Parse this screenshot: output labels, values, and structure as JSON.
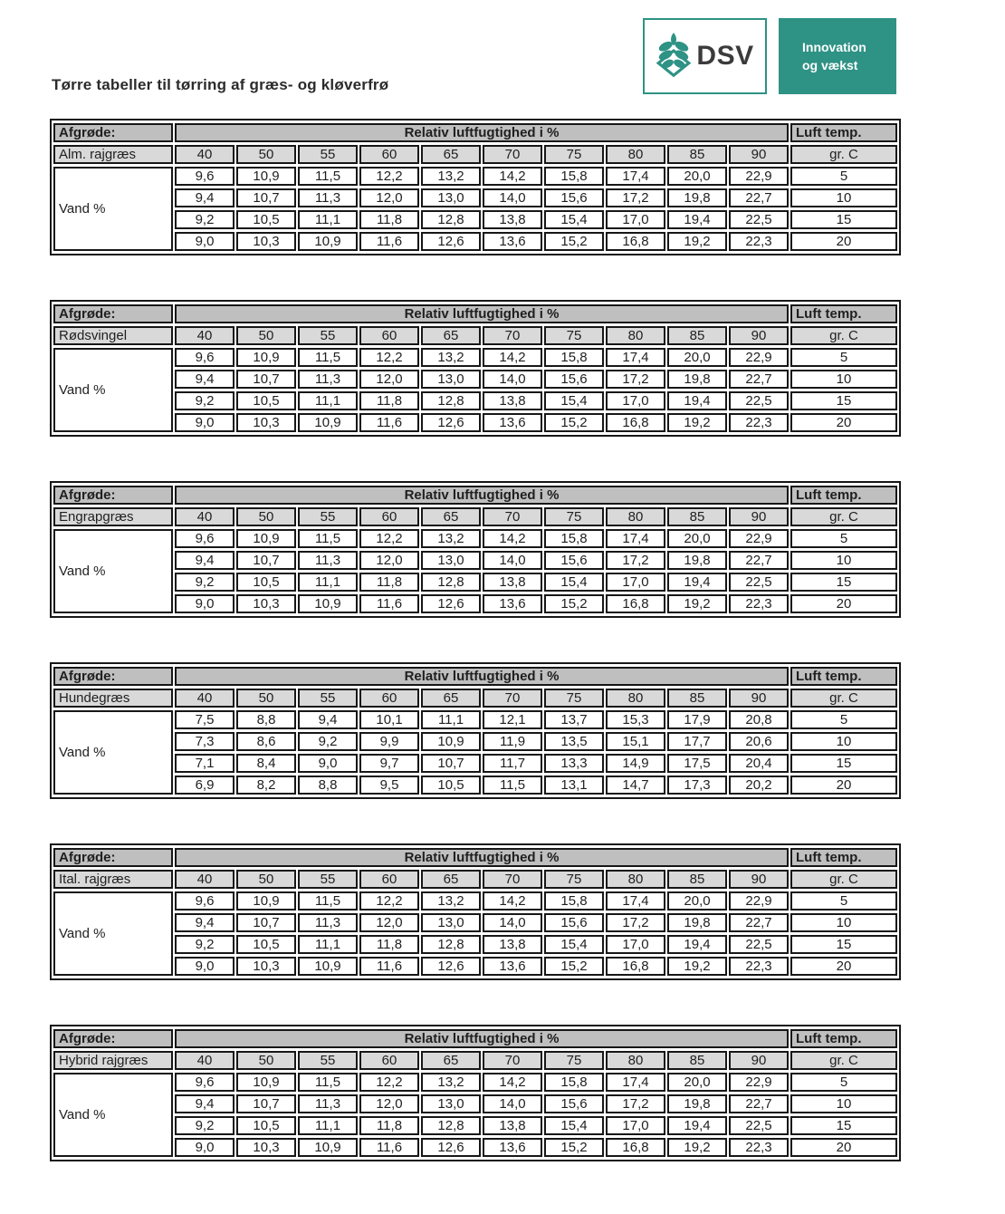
{
  "page": {
    "title": "Tørre tabeller til tørring af græs- og kløverfrø"
  },
  "logo": {
    "brand": "DSV",
    "tagline_line1": "Innovation",
    "tagline_line2": "og vækst",
    "teal_color": "#2e9285",
    "plant_icon": "wheat-plant-icon"
  },
  "table_labels": {
    "crop_header": "Afgrøde:",
    "humidity_header": "Relativ luftfugtighed i %",
    "temp_header": "Luft temp.",
    "temp_unit": "gr. C",
    "water_label": "Vand %"
  },
  "humidity_columns": [
    "40",
    "50",
    "55",
    "60",
    "65",
    "70",
    "75",
    "80",
    "85",
    "90"
  ],
  "temperatures": [
    "5",
    "10",
    "15",
    "20"
  ],
  "tables": [
    {
      "crop": "Alm. rajgræs",
      "rows": [
        [
          "9,6",
          "10,9",
          "11,5",
          "12,2",
          "13,2",
          "14,2",
          "15,8",
          "17,4",
          "20,0",
          "22,9"
        ],
        [
          "9,4",
          "10,7",
          "11,3",
          "12,0",
          "13,0",
          "14,0",
          "15,6",
          "17,2",
          "19,8",
          "22,7"
        ],
        [
          "9,2",
          "10,5",
          "11,1",
          "11,8",
          "12,8",
          "13,8",
          "15,4",
          "17,0",
          "19,4",
          "22,5"
        ],
        [
          "9,0",
          "10,3",
          "10,9",
          "11,6",
          "12,6",
          "13,6",
          "15,2",
          "16,8",
          "19,2",
          "22,3"
        ]
      ]
    },
    {
      "crop": "Rødsvingel",
      "rows": [
        [
          "9,6",
          "10,9",
          "11,5",
          "12,2",
          "13,2",
          "14,2",
          "15,8",
          "17,4",
          "20,0",
          "22,9"
        ],
        [
          "9,4",
          "10,7",
          "11,3",
          "12,0",
          "13,0",
          "14,0",
          "15,6",
          "17,2",
          "19,8",
          "22,7"
        ],
        [
          "9,2",
          "10,5",
          "11,1",
          "11,8",
          "12,8",
          "13,8",
          "15,4",
          "17,0",
          "19,4",
          "22,5"
        ],
        [
          "9,0",
          "10,3",
          "10,9",
          "11,6",
          "12,6",
          "13,6",
          "15,2",
          "16,8",
          "19,2",
          "22,3"
        ]
      ]
    },
    {
      "crop": "Engrapgræs",
      "rows": [
        [
          "9,6",
          "10,9",
          "11,5",
          "12,2",
          "13,2",
          "14,2",
          "15,8",
          "17,4",
          "20,0",
          "22,9"
        ],
        [
          "9,4",
          "10,7",
          "11,3",
          "12,0",
          "13,0",
          "14,0",
          "15,6",
          "17,2",
          "19,8",
          "22,7"
        ],
        [
          "9,2",
          "10,5",
          "11,1",
          "11,8",
          "12,8",
          "13,8",
          "15,4",
          "17,0",
          "19,4",
          "22,5"
        ],
        [
          "9,0",
          "10,3",
          "10,9",
          "11,6",
          "12,6",
          "13,6",
          "15,2",
          "16,8",
          "19,2",
          "22,3"
        ]
      ]
    },
    {
      "crop": "Hundegræs",
      "rows": [
        [
          "7,5",
          "8,8",
          "9,4",
          "10,1",
          "11,1",
          "12,1",
          "13,7",
          "15,3",
          "17,9",
          "20,8"
        ],
        [
          "7,3",
          "8,6",
          "9,2",
          "9,9",
          "10,9",
          "11,9",
          "13,5",
          "15,1",
          "17,7",
          "20,6"
        ],
        [
          "7,1",
          "8,4",
          "9,0",
          "9,7",
          "10,7",
          "11,7",
          "13,3",
          "14,9",
          "17,5",
          "20,4"
        ],
        [
          "6,9",
          "8,2",
          "8,8",
          "9,5",
          "10,5",
          "11,5",
          "13,1",
          "14,7",
          "17,3",
          "20,2"
        ]
      ]
    },
    {
      "crop": "Ital. rajgræs",
      "rows": [
        [
          "9,6",
          "10,9",
          "11,5",
          "12,2",
          "13,2",
          "14,2",
          "15,8",
          "17,4",
          "20,0",
          "22,9"
        ],
        [
          "9,4",
          "10,7",
          "11,3",
          "12,0",
          "13,0",
          "14,0",
          "15,6",
          "17,2",
          "19,8",
          "22,7"
        ],
        [
          "9,2",
          "10,5",
          "11,1",
          "11,8",
          "12,8",
          "13,8",
          "15,4",
          "17,0",
          "19,4",
          "22,5"
        ],
        [
          "9,0",
          "10,3",
          "10,9",
          "11,6",
          "12,6",
          "13,6",
          "15,2",
          "16,8",
          "19,2",
          "22,3"
        ]
      ]
    },
    {
      "crop": "Hybrid rajgræs",
      "rows": [
        [
          "9,6",
          "10,9",
          "11,5",
          "12,2",
          "13,2",
          "14,2",
          "15,8",
          "17,4",
          "20,0",
          "22,9"
        ],
        [
          "9,4",
          "10,7",
          "11,3",
          "12,0",
          "13,0",
          "14,0",
          "15,6",
          "17,2",
          "19,8",
          "22,7"
        ],
        [
          "9,2",
          "10,5",
          "11,1",
          "11,8",
          "12,8",
          "13,8",
          "15,4",
          "17,0",
          "19,4",
          "22,5"
        ],
        [
          "9,0",
          "10,3",
          "10,9",
          "11,6",
          "12,6",
          "13,6",
          "15,2",
          "16,8",
          "19,2",
          "22,3"
        ]
      ]
    }
  ],
  "colors": {
    "header_gray": "#bfbfbf",
    "subheader_gray": "#d9d9d9",
    "border_black": "#171717",
    "crop_blue": "#3a56a7",
    "brand_teal": "#2e9285"
  }
}
